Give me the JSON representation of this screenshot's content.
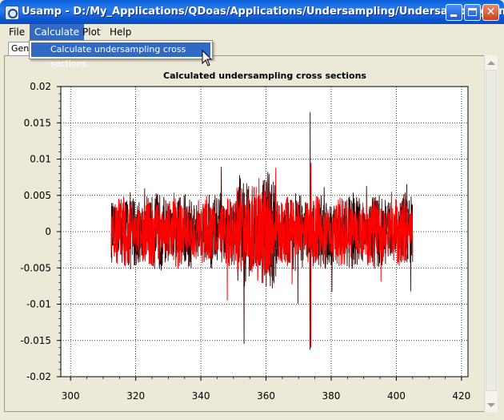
{
  "window": {
    "title": "Usamp - D:/My_Applications/QDoas/Applications/Undersampling/Undersampling.xml",
    "controls": [
      "minimize",
      "maximize",
      "close"
    ]
  },
  "menubar": {
    "items": [
      {
        "label": "File"
      },
      {
        "label": "Calculate",
        "active": true
      },
      {
        "label": "Plot"
      },
      {
        "label": "Help"
      }
    ]
  },
  "dropdown": {
    "items": [
      {
        "label": "Calculate undersampling cross sections"
      }
    ]
  },
  "tabs": [
    {
      "label": "Gen"
    }
  ],
  "colors": {
    "series_dark": "#2a0000",
    "series_red": "#ff0000",
    "menu_highlight": "#316ac5"
  },
  "chart_data": {
    "type": "line",
    "title": "Calculated undersampling cross sections",
    "xlabel": "",
    "ylabel": "",
    "xlim": [
      297,
      422
    ],
    "ylim": [
      -0.02,
      0.02
    ],
    "x_ticks": [
      300,
      320,
      340,
      360,
      380,
      400,
      420
    ],
    "y_ticks": [
      -0.02,
      -0.015,
      -0.01,
      -0.005,
      0,
      0.005,
      0.01,
      0.015,
      0.02
    ],
    "y_tick_labels": [
      "-0.02",
      "-0.015",
      "-0.01",
      "-0.005",
      "0",
      "0.005",
      "0.01",
      "0.015",
      "0.02"
    ],
    "grid": true,
    "series": [
      {
        "color": "#2a0000",
        "x_range": [
          312.5,
          405.0
        ],
        "envelope": 0.0055,
        "peak_max": 0.0165,
        "peak_min": -0.0163,
        "peak_at": 373.5
      },
      {
        "color": "#ff0000",
        "x_range": [
          312.5,
          405.0
        ],
        "envelope": 0.005,
        "peak_max": 0.0095,
        "peak_min": -0.016,
        "peak_at": 373.8
      }
    ]
  }
}
